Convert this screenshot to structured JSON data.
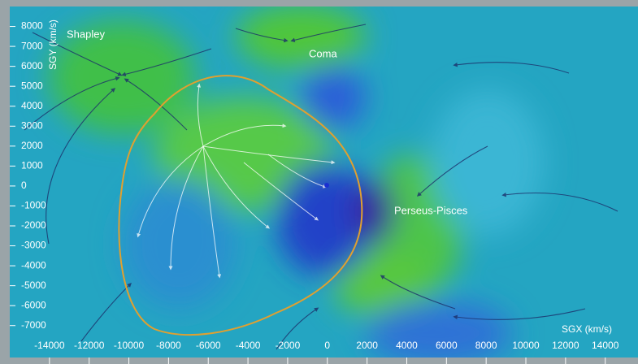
{
  "chart_data": {
    "type": "flow-map",
    "x_label": "SGX (km/s)",
    "y_label": "SGY (km/s)",
    "annotations": [
      "Shapley",
      "Coma",
      "Perseus-Pisces"
    ],
    "xlim": [
      -16000,
      15650
    ],
    "ylim": [
      -8600,
      9000
    ],
    "xticks": [
      -14000,
      -12000,
      -10000,
      -8000,
      -6000,
      -4000,
      -2000,
      0,
      2000,
      4000,
      6000,
      8000,
      10000,
      12000,
      14000
    ],
    "yticks": [
      8000,
      7000,
      6000,
      5000,
      4000,
      3000,
      2000,
      1000,
      0,
      -1000,
      -2000,
      -3000,
      -4000,
      -5000,
      -6000,
      -7000
    ]
  }
}
